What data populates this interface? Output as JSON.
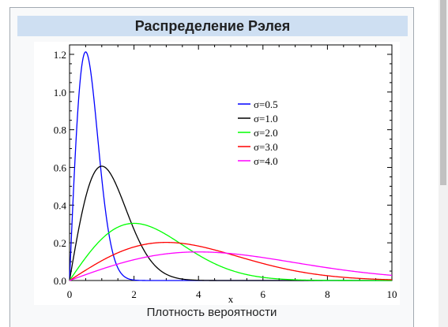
{
  "infobox": {
    "title": "Распределение Рэлея",
    "caption": "Плотность вероятности"
  },
  "chart_data": {
    "type": "line",
    "title": "",
    "xlabel": "x",
    "ylabel": "",
    "xlim": [
      0,
      10
    ],
    "ylim": [
      0,
      1.25
    ],
    "x_ticks": [
      "0",
      "2",
      "4",
      "6",
      "8",
      "10"
    ],
    "y_ticks": [
      "0.0",
      "0.2",
      "0.4",
      "0.6",
      "0.8",
      "1.0",
      "1.2"
    ],
    "legend_position": "top-right",
    "grid": false,
    "series": [
      {
        "name": "σ=0.5",
        "sigma": 0.5,
        "color": "#0000ff"
      },
      {
        "name": "σ=1.0",
        "sigma": 1.0,
        "color": "#000000"
      },
      {
        "name": "σ=2.0",
        "sigma": 2.0,
        "color": "#00ff00"
      },
      {
        "name": "σ=3.0",
        "sigma": 3.0,
        "color": "#ff0000"
      },
      {
        "name": "σ=4.0",
        "sigma": 4.0,
        "color": "#ff00ff"
      }
    ]
  }
}
